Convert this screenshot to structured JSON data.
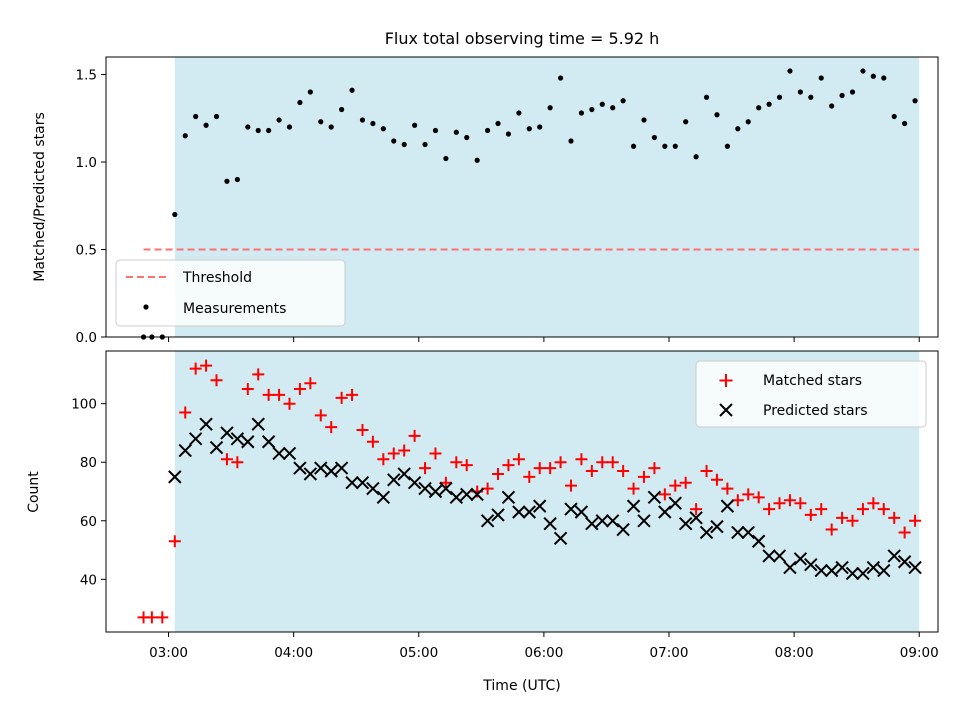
{
  "chart_data": [
    {
      "type": "scatter",
      "title": "Flux total observing time = 5.92 h",
      "ylabel": "Matched/Predicted stars",
      "xlabel": "",
      "x_unit": "time (UTC)",
      "xlim": [
        "02:30",
        "09:09"
      ],
      "ylim": [
        0,
        1.6
      ],
      "yticks": [
        0.0,
        0.5,
        1.0,
        1.5
      ],
      "ytick_labels": [
        "0.0",
        "0.5",
        "1.0",
        "1.5"
      ],
      "observing_window": {
        "start": "03:03",
        "end": "09:00",
        "color": "#add8e6"
      },
      "threshold": {
        "name": "Threshold",
        "value": 0.5,
        "x_range": [
          "02:48",
          "09:00"
        ],
        "color": "#ff7070"
      },
      "legend": {
        "location": "lower-left",
        "entries": [
          "Threshold",
          "Measurements"
        ]
      },
      "series": [
        {
          "name": "Measurements",
          "marker": "dot",
          "color": "#000000",
          "points": [
            [
              "02:48",
              0.0
            ],
            [
              "02:52",
              0.0
            ],
            [
              "02:57",
              0.0
            ],
            [
              "03:03",
              0.7
            ],
            [
              "03:08",
              1.15
            ],
            [
              "03:13",
              1.26
            ],
            [
              "03:18",
              1.21
            ],
            [
              "03:23",
              1.26
            ],
            [
              "03:28",
              0.89
            ],
            [
              "03:33",
              0.9
            ],
            [
              "03:38",
              1.2
            ],
            [
              "03:43",
              1.18
            ],
            [
              "03:48",
              1.18
            ],
            [
              "03:53",
              1.24
            ],
            [
              "03:58",
              1.2
            ],
            [
              "04:03",
              1.34
            ],
            [
              "04:08",
              1.4
            ],
            [
              "04:13",
              1.23
            ],
            [
              "04:18",
              1.2
            ],
            [
              "04:23",
              1.3
            ],
            [
              "04:28",
              1.41
            ],
            [
              "04:33",
              1.24
            ],
            [
              "04:38",
              1.22
            ],
            [
              "04:43",
              1.19
            ],
            [
              "04:48",
              1.12
            ],
            [
              "04:53",
              1.1
            ],
            [
              "04:58",
              1.21
            ],
            [
              "05:03",
              1.1
            ],
            [
              "05:08",
              1.18
            ],
            [
              "05:13",
              1.02
            ],
            [
              "05:18",
              1.17
            ],
            [
              "05:23",
              1.14
            ],
            [
              "05:28",
              1.01
            ],
            [
              "05:33",
              1.18
            ],
            [
              "05:38",
              1.22
            ],
            [
              "05:43",
              1.16
            ],
            [
              "05:48",
              1.28
            ],
            [
              "05:53",
              1.19
            ],
            [
              "05:58",
              1.2
            ],
            [
              "06:03",
              1.31
            ],
            [
              "06:08",
              1.48
            ],
            [
              "06:13",
              1.12
            ],
            [
              "06:18",
              1.28
            ],
            [
              "06:23",
              1.3
            ],
            [
              "06:28",
              1.33
            ],
            [
              "06:33",
              1.31
            ],
            [
              "06:38",
              1.35
            ],
            [
              "06:43",
              1.09
            ],
            [
              "06:48",
              1.24
            ],
            [
              "06:53",
              1.14
            ],
            [
              "06:58",
              1.09
            ],
            [
              "07:03",
              1.09
            ],
            [
              "07:08",
              1.23
            ],
            [
              "07:13",
              1.03
            ],
            [
              "07:18",
              1.37
            ],
            [
              "07:23",
              1.27
            ],
            [
              "07:28",
              1.09
            ],
            [
              "07:33",
              1.19
            ],
            [
              "07:38",
              1.23
            ],
            [
              "07:43",
              1.31
            ],
            [
              "07:48",
              1.33
            ],
            [
              "07:53",
              1.37
            ],
            [
              "07:58",
              1.52
            ],
            [
              "08:03",
              1.4
            ],
            [
              "08:08",
              1.37
            ],
            [
              "08:13",
              1.48
            ],
            [
              "08:18",
              1.32
            ],
            [
              "08:23",
              1.38
            ],
            [
              "08:28",
              1.4
            ],
            [
              "08:33",
              1.52
            ],
            [
              "08:38",
              1.49
            ],
            [
              "08:43",
              1.48
            ],
            [
              "08:48",
              1.26
            ],
            [
              "08:53",
              1.22
            ],
            [
              "08:58",
              1.35
            ]
          ]
        }
      ]
    },
    {
      "type": "scatter",
      "title": "",
      "ylabel": "Count",
      "xlabel": "Time (UTC)",
      "x_unit": "time (UTC)",
      "xlim": [
        "02:30",
        "09:09"
      ],
      "ylim": [
        22,
        118
      ],
      "yticks": [
        40,
        60,
        80,
        100
      ],
      "xticks": [
        "03:00",
        "04:00",
        "05:00",
        "06:00",
        "07:00",
        "08:00",
        "09:00"
      ],
      "observing_window": {
        "start": "03:03",
        "end": "09:00",
        "color": "#add8e6"
      },
      "legend": {
        "location": "top-right",
        "entries": [
          "Matched stars",
          "Predicted stars"
        ]
      },
      "series": [
        {
          "name": "Matched stars",
          "marker": "plus",
          "color": "#ff0000",
          "points": [
            [
              "02:48",
              27
            ],
            [
              "02:52",
              27
            ],
            [
              "02:57",
              27
            ],
            [
              "03:03",
              53
            ],
            [
              "03:08",
              97
            ],
            [
              "03:13",
              112
            ],
            [
              "03:18",
              113
            ],
            [
              "03:23",
              108
            ],
            [
              "03:28",
              81
            ],
            [
              "03:33",
              80
            ],
            [
              "03:38",
              105
            ],
            [
              "03:43",
              110
            ],
            [
              "03:48",
              103
            ],
            [
              "03:53",
              103
            ],
            [
              "03:58",
              100
            ],
            [
              "04:03",
              105
            ],
            [
              "04:08",
              107
            ],
            [
              "04:13",
              96
            ],
            [
              "04:18",
              92
            ],
            [
              "04:23",
              102
            ],
            [
              "04:28",
              103
            ],
            [
              "04:33",
              91
            ],
            [
              "04:38",
              87
            ],
            [
              "04:43",
              81
            ],
            [
              "04:48",
              83
            ],
            [
              "04:53",
              84
            ],
            [
              "04:58",
              89
            ],
            [
              "05:03",
              78
            ],
            [
              "05:08",
              83
            ],
            [
              "05:13",
              73
            ],
            [
              "05:18",
              80
            ],
            [
              "05:23",
              79
            ],
            [
              "05:28",
              70
            ],
            [
              "05:33",
              71
            ],
            [
              "05:38",
              76
            ],
            [
              "05:43",
              79
            ],
            [
              "05:48",
              81
            ],
            [
              "05:53",
              75
            ],
            [
              "05:58",
              78
            ],
            [
              "06:03",
              78
            ],
            [
              "06:08",
              80
            ],
            [
              "06:13",
              72
            ],
            [
              "06:18",
              81
            ],
            [
              "06:23",
              77
            ],
            [
              "06:28",
              80
            ],
            [
              "06:33",
              80
            ],
            [
              "06:38",
              77
            ],
            [
              "06:43",
              71
            ],
            [
              "06:48",
              75
            ],
            [
              "06:53",
              78
            ],
            [
              "06:58",
              69
            ],
            [
              "07:03",
              72
            ],
            [
              "07:08",
              73
            ],
            [
              "07:13",
              64
            ],
            [
              "07:18",
              77
            ],
            [
              "07:23",
              74
            ],
            [
              "07:28",
              71
            ],
            [
              "07:33",
              67
            ],
            [
              "07:38",
              69
            ],
            [
              "07:43",
              68
            ],
            [
              "07:48",
              64
            ],
            [
              "07:53",
              66
            ],
            [
              "07:58",
              67
            ],
            [
              "08:03",
              66
            ],
            [
              "08:08",
              62
            ],
            [
              "08:13",
              64
            ],
            [
              "08:18",
              57
            ],
            [
              "08:23",
              61
            ],
            [
              "08:28",
              60
            ],
            [
              "08:33",
              64
            ],
            [
              "08:38",
              66
            ],
            [
              "08:43",
              64
            ],
            [
              "08:48",
              61
            ],
            [
              "08:53",
              56
            ],
            [
              "08:58",
              60
            ]
          ]
        },
        {
          "name": "Predicted stars",
          "marker": "x",
          "color": "#000000",
          "points": [
            [
              "03:03",
              75
            ],
            [
              "03:08",
              84
            ],
            [
              "03:13",
              88
            ],
            [
              "03:18",
              93
            ],
            [
              "03:23",
              85
            ],
            [
              "03:28",
              90
            ],
            [
              "03:33",
              88
            ],
            [
              "03:38",
              87
            ],
            [
              "03:43",
              93
            ],
            [
              "03:48",
              87
            ],
            [
              "03:53",
              83
            ],
            [
              "03:58",
              83
            ],
            [
              "04:03",
              78
            ],
            [
              "04:08",
              76
            ],
            [
              "04:13",
              78
            ],
            [
              "04:18",
              77
            ],
            [
              "04:23",
              78
            ],
            [
              "04:28",
              73
            ],
            [
              "04:33",
              73
            ],
            [
              "04:38",
              71
            ],
            [
              "04:43",
              68
            ],
            [
              "04:48",
              74
            ],
            [
              "04:53",
              76
            ],
            [
              "04:58",
              73
            ],
            [
              "05:03",
              71
            ],
            [
              "05:08",
              70
            ],
            [
              "05:13",
              71
            ],
            [
              "05:18",
              68
            ],
            [
              "05:23",
              69
            ],
            [
              "05:28",
              69
            ],
            [
              "05:33",
              60
            ],
            [
              "05:38",
              62
            ],
            [
              "05:43",
              68
            ],
            [
              "05:48",
              63
            ],
            [
              "05:53",
              63
            ],
            [
              "05:58",
              65
            ],
            [
              "06:03",
              59
            ],
            [
              "06:08",
              54
            ],
            [
              "06:13",
              64
            ],
            [
              "06:18",
              63
            ],
            [
              "06:23",
              59
            ],
            [
              "06:28",
              60
            ],
            [
              "06:33",
              60
            ],
            [
              "06:38",
              57
            ],
            [
              "06:43",
              65
            ],
            [
              "06:48",
              60
            ],
            [
              "06:53",
              68
            ],
            [
              "06:58",
              63
            ],
            [
              "07:03",
              66
            ],
            [
              "07:08",
              59
            ],
            [
              "07:13",
              61
            ],
            [
              "07:18",
              56
            ],
            [
              "07:23",
              58
            ],
            [
              "07:28",
              65
            ],
            [
              "07:33",
              56
            ],
            [
              "07:38",
              56
            ],
            [
              "07:43",
              53
            ],
            [
              "07:48",
              48
            ],
            [
              "07:53",
              48
            ],
            [
              "07:58",
              44
            ],
            [
              "08:03",
              47
            ],
            [
              "08:08",
              45
            ],
            [
              "08:13",
              43
            ],
            [
              "08:18",
              43
            ],
            [
              "08:23",
              44
            ],
            [
              "08:28",
              42
            ],
            [
              "08:33",
              42
            ],
            [
              "08:38",
              44
            ],
            [
              "08:43",
              43
            ],
            [
              "08:48",
              48
            ],
            [
              "08:53",
              46
            ],
            [
              "08:58",
              44
            ]
          ]
        }
      ]
    }
  ]
}
